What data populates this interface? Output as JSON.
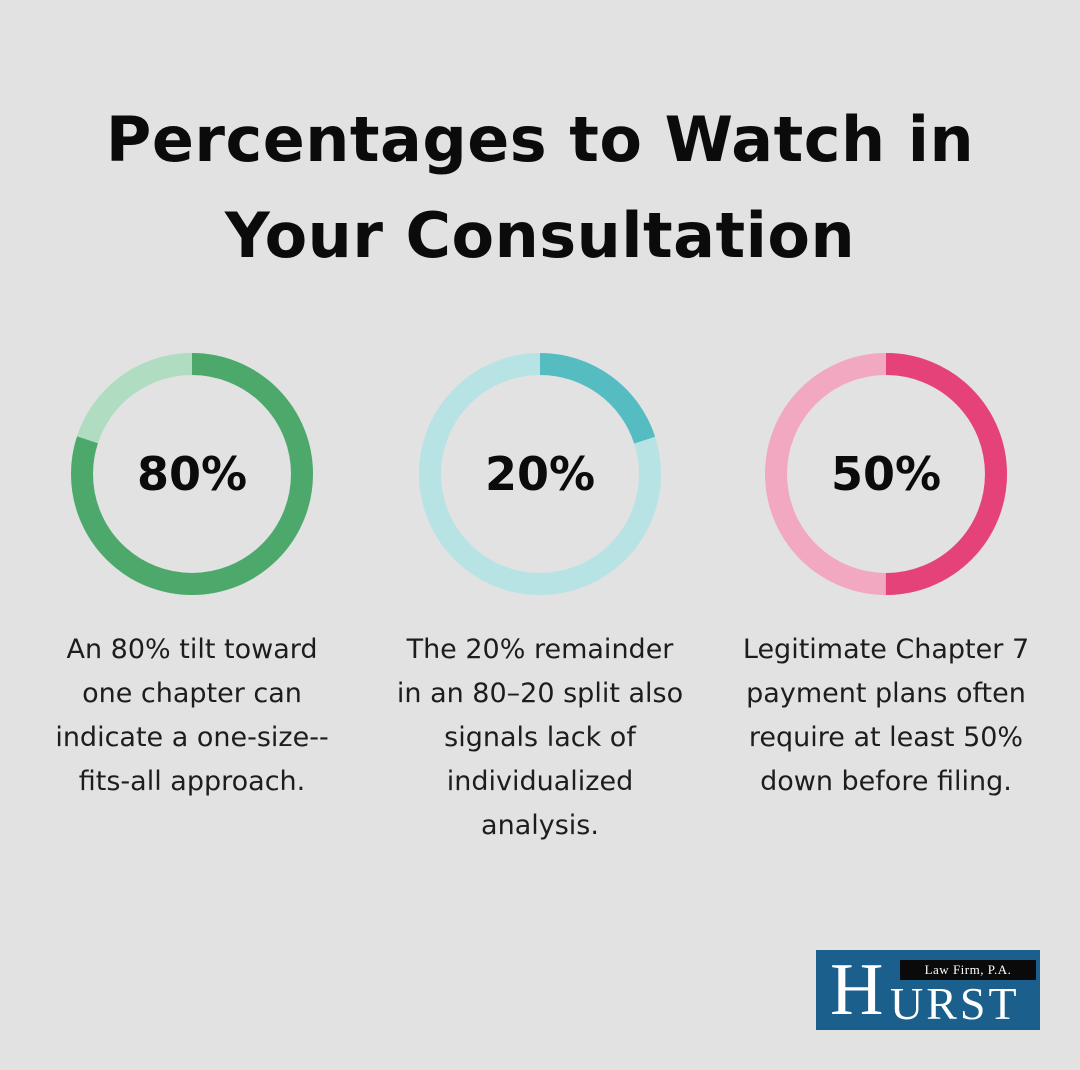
{
  "title_lines": [
    "Percentages to Watch in",
    "Your Consultation"
  ],
  "chart_data": {
    "type": "donut",
    "items": [
      {
        "label": "80%",
        "value": 80,
        "color": "#4ca96b",
        "track_color": "#b0dcc1",
        "description_lines": [
          "An 80% tilt toward",
          "one chapter can",
          "indicate a one-size-‑",
          "fits-all approach."
        ]
      },
      {
        "label": "20%",
        "value": 20,
        "color": "#55bcc2",
        "track_color": "#b8e3e5",
        "description_lines": [
          "The 20% remainder",
          "in an 80–20 split also",
          "signals lack of",
          "individualized",
          "analysis."
        ]
      },
      {
        "label": "50%",
        "value": 50,
        "color": "#e5427a",
        "track_color": "#f2a8c0",
        "description_lines": [
          "Legitimate Chapter 7",
          "payment plans often",
          "require at least 50%",
          "down before filing."
        ]
      }
    ]
  },
  "logo": {
    "initial": "H",
    "rest": "URST",
    "top_text": "Law Firm, P.A."
  }
}
